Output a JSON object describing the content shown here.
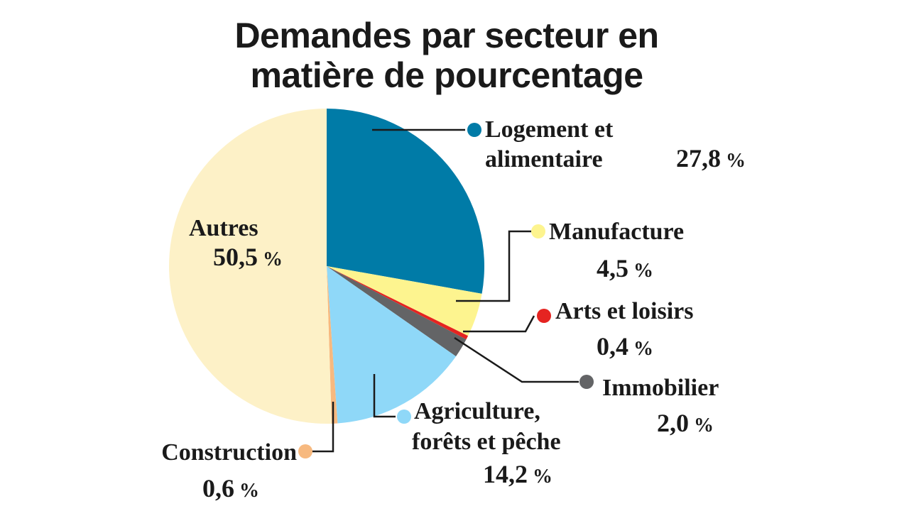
{
  "title": {
    "line1": "Demandes par secteur en",
    "line2": "matière de pourcentage"
  },
  "chart_data": {
    "type": "pie",
    "title": "Demandes par secteur en matière de pourcentage",
    "unit": "%",
    "slices": [
      {
        "key": "logement",
        "lines": [
          "Logement et",
          "alimentaire"
        ],
        "value": 27.8,
        "value_label": "27,8",
        "color": "#007ba7"
      },
      {
        "key": "manufacture",
        "lines": [
          "Manufacture"
        ],
        "value": 4.5,
        "value_label": "4,5",
        "color": "#fdf48f"
      },
      {
        "key": "arts",
        "lines": [
          "Arts et loisirs"
        ],
        "value": 0.4,
        "value_label": "0,4",
        "color": "#e52421"
      },
      {
        "key": "immobilier",
        "lines": [
          "Immobilier"
        ],
        "value": 2.0,
        "value_label": "2,0",
        "color": "#636466"
      },
      {
        "key": "agriculture",
        "lines": [
          "Agriculture,",
          "forêts et pêche"
        ],
        "value": 14.2,
        "value_label": "14,2",
        "color": "#8fd8f8"
      },
      {
        "key": "construction",
        "lines": [
          "Construction"
        ],
        "value": 0.6,
        "value_label": "0,6",
        "color": "#f7b97f"
      },
      {
        "key": "autres",
        "lines": [
          "Autres"
        ],
        "value": 50.5,
        "value_label": "50,5",
        "color": "#fdf1c7"
      }
    ]
  }
}
